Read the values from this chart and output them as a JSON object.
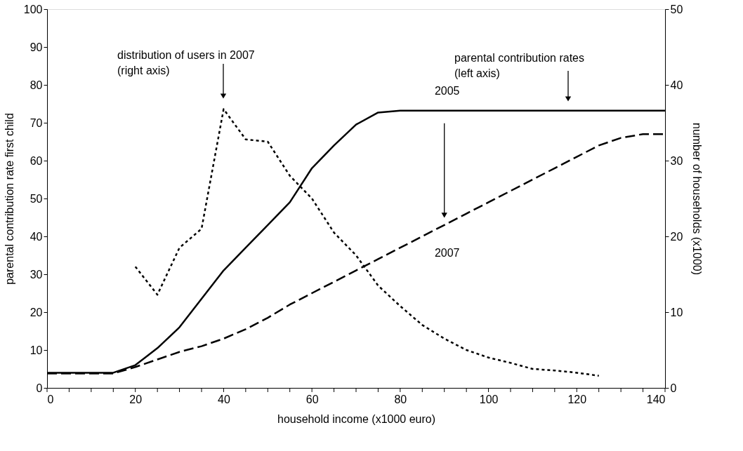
{
  "chart_data": {
    "type": "line",
    "xlabel": "household income (x1000 euro)",
    "ylabel": "parental contribution rate first child",
    "y2label": "number of households (x1000)",
    "xlim": [
      0,
      140
    ],
    "xticks": [
      0,
      {
        "value": 5,
        "label": null
      },
      {
        "value": 10,
        "label": null
      },
      {
        "value": 15,
        "label": null
      },
      20,
      {
        "value": 25,
        "label": null
      },
      {
        "value": 30,
        "label": null
      },
      {
        "value": 35,
        "label": null
      },
      40,
      {
        "value": 45,
        "label": null
      },
      {
        "value": 50,
        "label": null
      },
      {
        "value": 55,
        "label": null
      },
      60,
      {
        "value": 65,
        "label": null
      },
      {
        "value": 70,
        "label": null
      },
      {
        "value": 75,
        "label": null
      },
      80,
      {
        "value": 85,
        "label": null
      },
      {
        "value": 90,
        "label": null
      },
      {
        "value": 95,
        "label": null
      },
      100,
      {
        "value": 105,
        "label": null
      },
      {
        "value": 110,
        "label": null
      },
      {
        "value": 115,
        "label": null
      },
      120,
      {
        "value": 125,
        "label": null
      },
      {
        "value": 130,
        "label": null
      },
      {
        "value": 135,
        "label": null
      },
      140
    ],
    "ylim": [
      0,
      100
    ],
    "yticks": [
      0,
      10,
      20,
      30,
      40,
      50,
      60,
      70,
      80,
      90,
      100
    ],
    "y2lim": [
      0,
      50
    ],
    "y2ticks": [
      0,
      10,
      20,
      30,
      40,
      50
    ],
    "grid": false,
    "legend": false,
    "marker": "none",
    "series": [
      {
        "name": "2005",
        "color": "#000000",
        "line_style": "solid",
        "x": [
          0,
          5,
          10,
          15,
          20,
          25,
          30,
          35,
          40,
          45,
          50,
          55,
          60,
          65,
          70,
          75,
          80,
          85,
          90,
          95,
          100,
          105,
          110,
          115,
          120,
          125,
          130,
          135,
          140
        ],
        "values": [
          4,
          4,
          4,
          4,
          6,
          10.5,
          16,
          23.5,
          31,
          37,
          43,
          49,
          58,
          64,
          69.5,
          72.7,
          73.2,
          73.2,
          73.2,
          73.2,
          73.2,
          73.2,
          73.2,
          73.2,
          73.2,
          73.2,
          73.2,
          73.2,
          73.2
        ]
      },
      {
        "name": "2007",
        "color": "#000000",
        "line_style": "dashed",
        "x": [
          0,
          5,
          10,
          15,
          20,
          25,
          30,
          35,
          40,
          45,
          50,
          55,
          60,
          65,
          70,
          75,
          80,
          85,
          90,
          95,
          100,
          105,
          110,
          115,
          120,
          125,
          130,
          135,
          140
        ],
        "values": [
          3.8,
          3.8,
          3.8,
          3.8,
          5.5,
          7.5,
          9.5,
          11,
          13,
          15.5,
          18.5,
          22,
          25,
          28,
          31,
          34,
          37,
          40,
          43,
          46,
          49,
          52,
          55,
          58,
          61,
          64,
          66,
          67,
          67
        ]
      },
      {
        "color": "#000000",
        "line_style": "dotted",
        "axis": "y2",
        "x": [
          20,
          25,
          30,
          35,
          40,
          45,
          50,
          55,
          60,
          65,
          70,
          75,
          80,
          85,
          90,
          95,
          100,
          105,
          110,
          115,
          120,
          125
        ],
        "values": [
          16,
          12.3,
          18.5,
          21,
          36.8,
          32.8,
          32.5,
          28,
          25,
          20.5,
          17.5,
          13.5,
          10.8,
          8.3,
          6.5,
          5,
          4,
          3.3,
          2.5,
          2.3,
          2,
          1.6
        ]
      }
    ],
    "annotations": [
      "distribution of users in 2007\n(right axis)",
      "parental contribution rates\n(left axis)"
    ]
  }
}
